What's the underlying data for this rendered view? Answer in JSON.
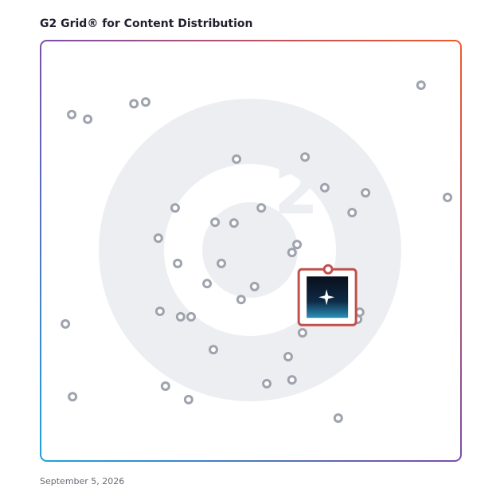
{
  "chart_data": {
    "type": "scatter",
    "title": "G2 Grid® for Content Distribution",
    "date": "September 5, 2026",
    "x": [
      7.4,
      11.2,
      22.2,
      25.0,
      90.5,
      46.6,
      62.9,
      67.6,
      77.3,
      96.8,
      32.0,
      52.5,
      41.5,
      46.0,
      74.1,
      28.0,
      61.0,
      59.8,
      32.6,
      43.0,
      39.6,
      50.9,
      47.7,
      28.4,
      33.3,
      35.8,
      75.9,
      75.4,
      62.3,
      5.9,
      41.1,
      58.9,
      59.8,
      53.8,
      29.7,
      7.6,
      35.2,
      70.8
    ],
    "y": [
      82.4,
      81.3,
      85.0,
      85.4,
      89.4,
      71.8,
      72.3,
      65.0,
      63.8,
      62.7,
      60.2,
      60.2,
      56.8,
      56.6,
      59.1,
      53.0,
      51.5,
      49.6,
      47.0,
      47.0,
      42.2,
      41.5,
      38.4,
      35.6,
      34.3,
      34.3,
      35.4,
      33.7,
      30.5,
      32.6,
      26.5,
      24.8,
      19.3,
      18.4,
      17.8,
      15.3,
      14.6,
      10.2
    ],
    "color": "#9ea3ad",
    "highlight": {
      "x": 68.4,
      "y": 45.6,
      "color": "#c0504d"
    },
    "xlim": [
      0,
      100
    ],
    "ylim": [
      0,
      100
    ]
  }
}
